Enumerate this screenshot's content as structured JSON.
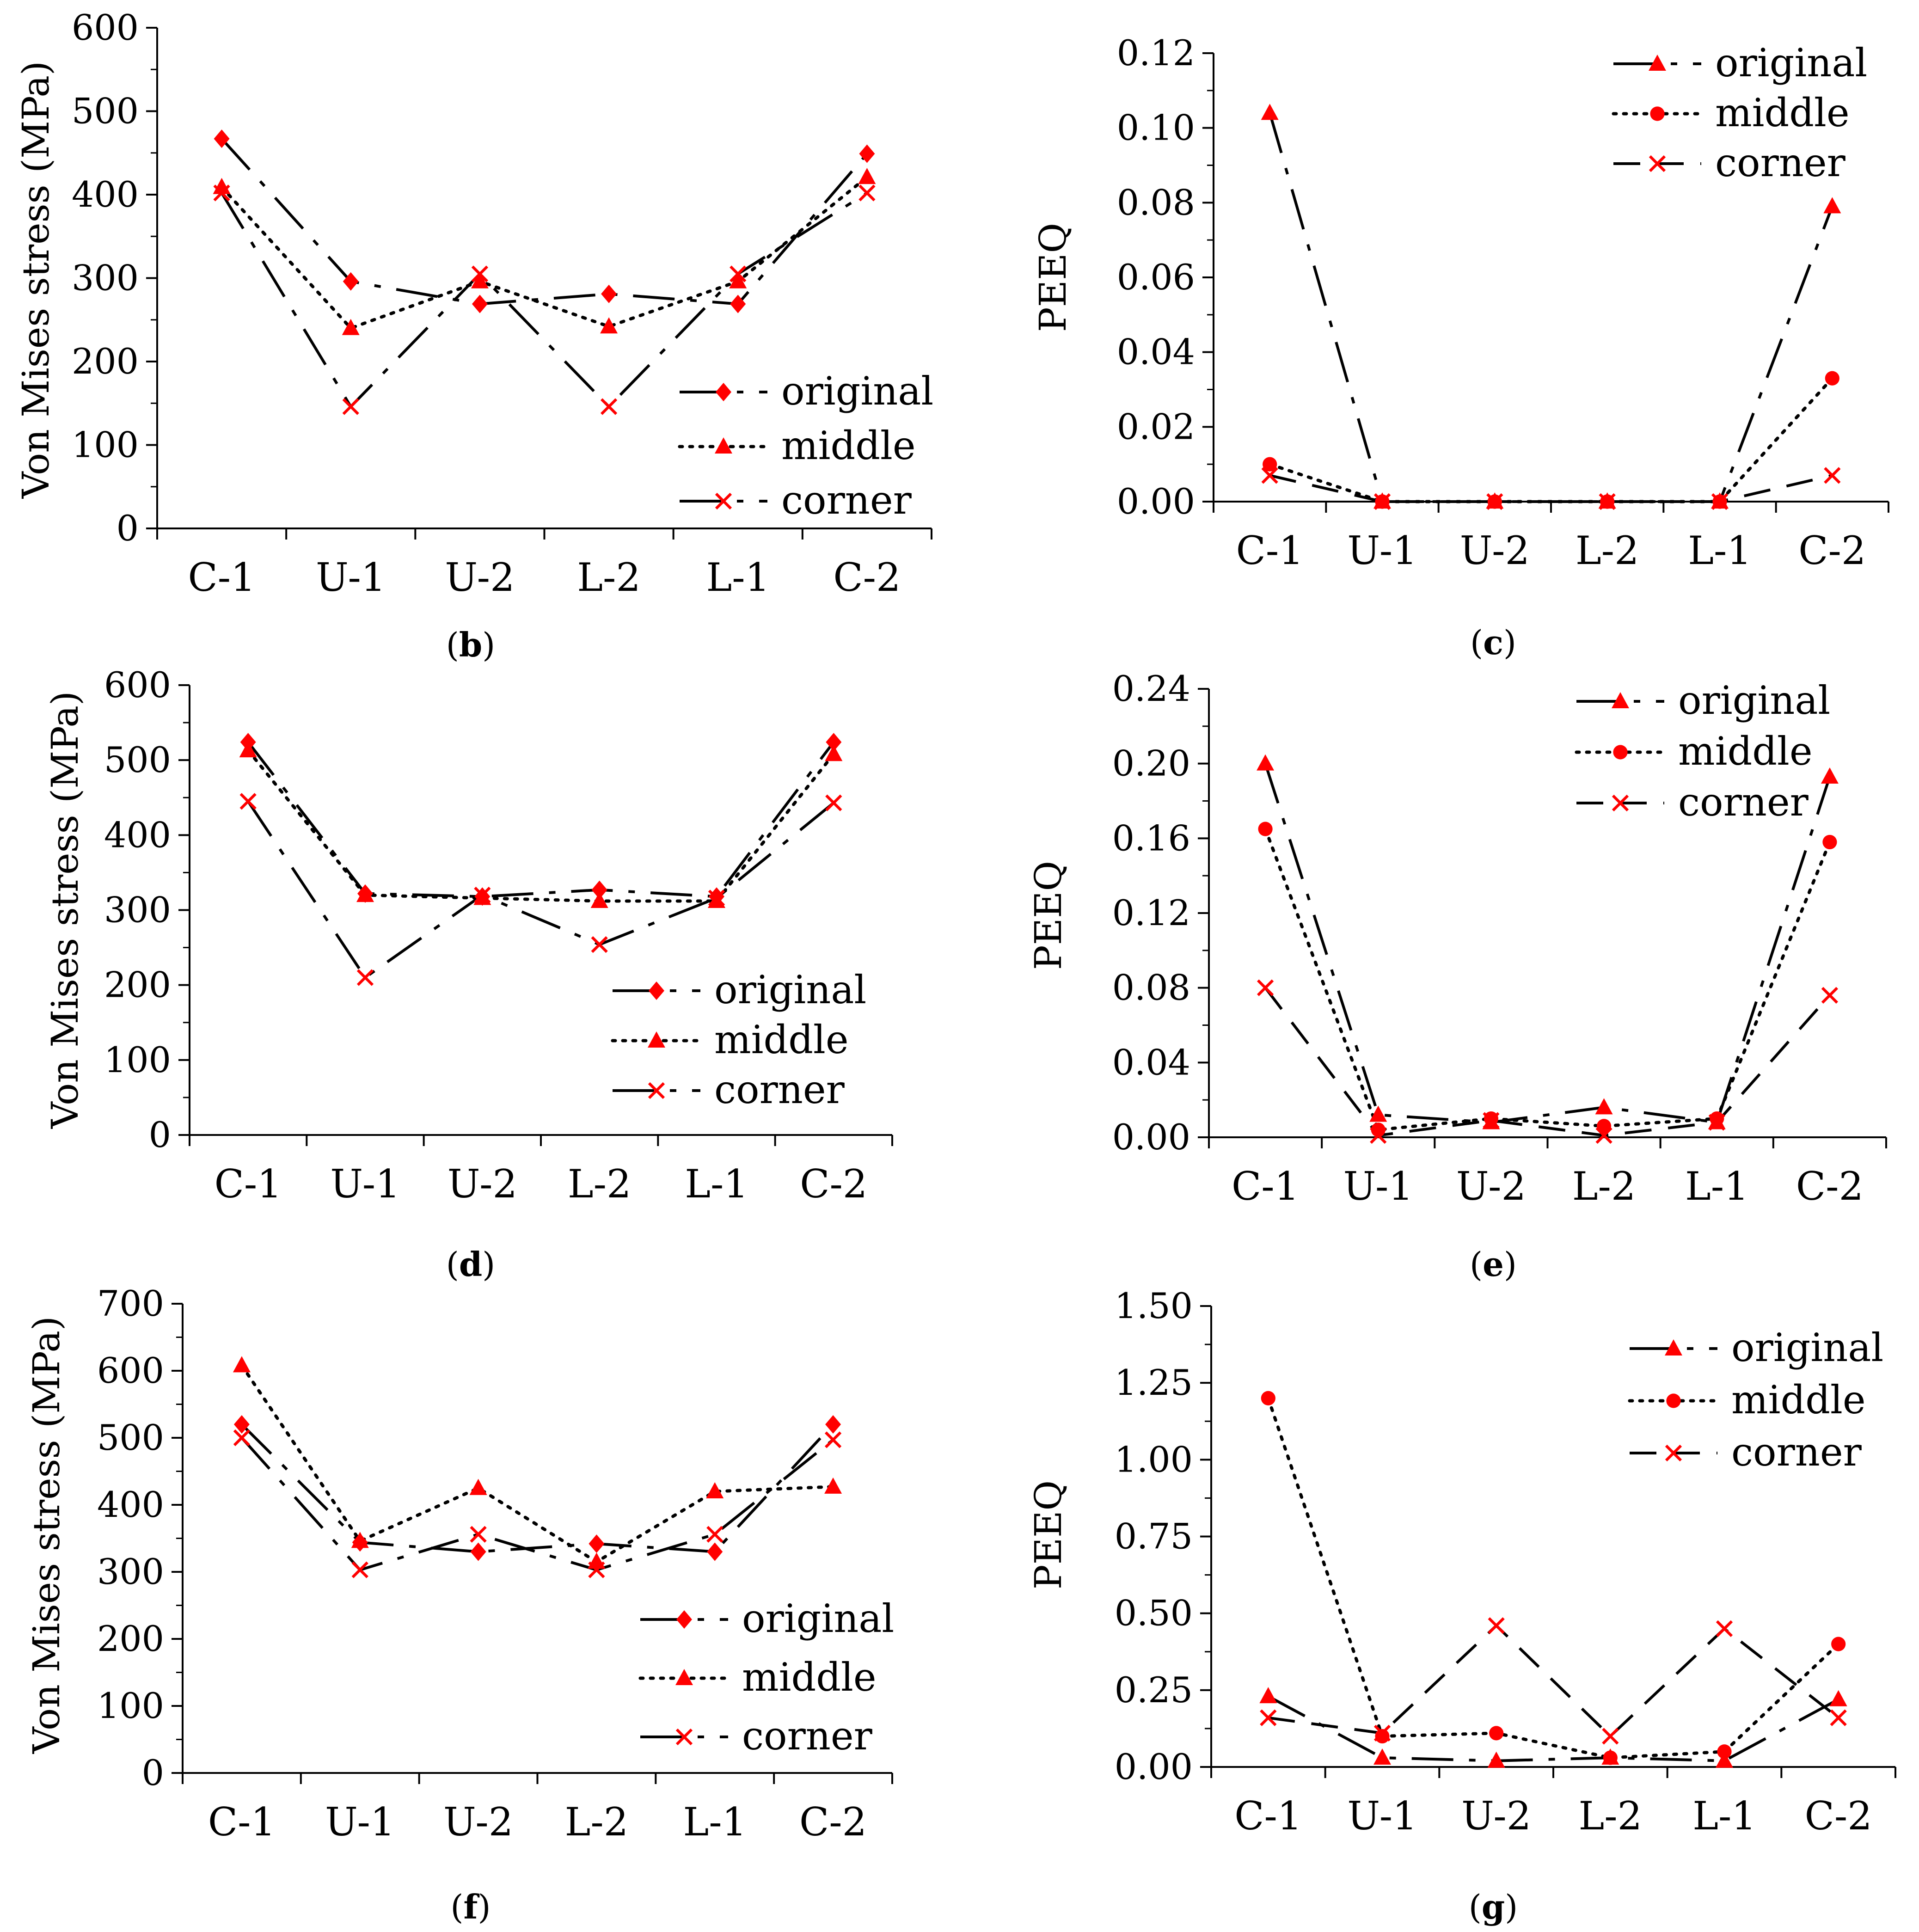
{
  "styles": {
    "marker_color": "#FF0000",
    "line_color": "#000000",
    "dash_patterns": {
      "dashdot": "90,34,14,34",
      "dotted": "6,16",
      "dashed": "58,36"
    }
  },
  "chart_data": [
    {
      "panel": "b",
      "caption_letter": "b",
      "type": "line",
      "ylabel": "Von Mises stress (MPa)",
      "ylim": [
        0,
        600
      ],
      "yticks": [
        "0",
        "100",
        "200",
        "300",
        "400",
        "500",
        "600"
      ],
      "tick_values": [
        0,
        100,
        200,
        300,
        400,
        500,
        600
      ],
      "categories": [
        "C-1",
        "U-1",
        "U-2",
        "L-2",
        "L-1",
        "C-2"
      ],
      "legend_position": "bottom-right",
      "series": [
        {
          "name": "original",
          "marker": "diamond",
          "line": "dashdot",
          "values": [
            467,
            296,
            269,
            281,
            269,
            449
          ]
        },
        {
          "name": "middle",
          "marker": "triangle",
          "line": "dotted",
          "values": [
            409,
            240,
            296,
            242,
            296,
            421
          ]
        },
        {
          "name": "corner",
          "marker": "x",
          "line": "dashdot",
          "values": [
            402,
            146,
            305,
            146,
            305,
            402
          ]
        }
      ]
    },
    {
      "panel": "c",
      "caption_letter": "c",
      "type": "line",
      "ylabel": "PEEQ",
      "ylim": [
        0,
        0.12
      ],
      "yticks": [
        "0.00",
        "0.02",
        "0.04",
        "0.06",
        "0.08",
        "0.10",
        "0.12"
      ],
      "tick_values": [
        0,
        0.02,
        0.04,
        0.06,
        0.08,
        0.1,
        0.12
      ],
      "categories": [
        "C-1",
        "U-1",
        "U-2",
        "L-2",
        "L-1",
        "C-2"
      ],
      "legend_position": "top-right",
      "series": [
        {
          "name": "original",
          "marker": "triangle",
          "line": "dashdot",
          "values": [
            0.104,
            0.0,
            0.0,
            0.0,
            0.0,
            0.079
          ]
        },
        {
          "name": "middle",
          "marker": "circle",
          "line": "dotted",
          "values": [
            0.01,
            0.0,
            0.0,
            0.0,
            0.0,
            0.033
          ]
        },
        {
          "name": "corner",
          "marker": "x",
          "line": "dashed",
          "values": [
            0.007,
            0.0,
            0.0,
            0.0,
            0.0,
            0.007
          ]
        }
      ]
    },
    {
      "panel": "d",
      "caption_letter": "d",
      "type": "line",
      "ylabel": "Von Mises stress (MPa)",
      "ylim": [
        0,
        600
      ],
      "yticks": [
        "0",
        "100",
        "200",
        "300",
        "400",
        "500",
        "600"
      ],
      "tick_values": [
        0,
        100,
        200,
        300,
        400,
        500,
        600
      ],
      "categories": [
        "C-1",
        "U-1",
        "U-2",
        "L-2",
        "L-1",
        "C-2"
      ],
      "legend_position": "bottom-right",
      "series": [
        {
          "name": "original",
          "marker": "diamond",
          "line": "dashdot",
          "values": [
            524,
            322,
            318,
            327,
            318,
            524
          ]
        },
        {
          "name": "middle",
          "marker": "triangle",
          "line": "dotted",
          "values": [
            513,
            320,
            316,
            312,
            312,
            508
          ]
        },
        {
          "name": "corner",
          "marker": "x",
          "line": "dashdot",
          "values": [
            445,
            210,
            320,
            254,
            316,
            443
          ]
        }
      ]
    },
    {
      "panel": "e",
      "caption_letter": "e",
      "type": "line",
      "ylabel": "PEEQ",
      "ylim": [
        0,
        0.24
      ],
      "yticks": [
        "0.00",
        "0.04",
        "0.08",
        "0.12",
        "0.16",
        "0.20",
        "0.24"
      ],
      "tick_values": [
        0,
        0.04,
        0.08,
        0.12,
        0.16,
        0.2,
        0.24
      ],
      "categories": [
        "C-1",
        "U-1",
        "U-2",
        "L-2",
        "L-1",
        "C-2"
      ],
      "legend_position": "top-right",
      "series": [
        {
          "name": "original",
          "marker": "triangle",
          "line": "dashdot",
          "values": [
            0.2,
            0.012,
            0.008,
            0.016,
            0.008,
            0.193
          ]
        },
        {
          "name": "middle",
          "marker": "circle",
          "line": "dotted",
          "values": [
            0.165,
            0.004,
            0.01,
            0.006,
            0.01,
            0.158
          ]
        },
        {
          "name": "corner",
          "marker": "x",
          "line": "dashed",
          "values": [
            0.08,
            0.001,
            0.009,
            0.001,
            0.008,
            0.076
          ]
        }
      ]
    },
    {
      "panel": "f",
      "caption_letter": "f",
      "type": "line",
      "ylabel": "Von Mises stress (MPa)",
      "ylim": [
        0,
        700
      ],
      "yticks": [
        "0",
        "100",
        "200",
        "300",
        "400",
        "500",
        "600",
        "700"
      ],
      "tick_values": [
        0,
        100,
        200,
        300,
        400,
        500,
        600,
        700
      ],
      "categories": [
        "C-1",
        "U-1",
        "U-2",
        "L-2",
        "L-1",
        "C-2"
      ],
      "legend_position": "bottom-right",
      "series": [
        {
          "name": "original",
          "marker": "diamond",
          "line": "dashdot",
          "values": [
            520,
            344,
            330,
            342,
            330,
            520
          ]
        },
        {
          "name": "middle",
          "marker": "triangle",
          "line": "dotted",
          "values": [
            608,
            346,
            425,
            315,
            420,
            427
          ]
        },
        {
          "name": "corner",
          "marker": "x",
          "line": "dashdot",
          "values": [
            500,
            303,
            356,
            303,
            356,
            497
          ]
        }
      ]
    },
    {
      "panel": "g",
      "caption_letter": "g",
      "type": "line",
      "ylabel": "PEEQ",
      "ylim": [
        0,
        1.5
      ],
      "yticks": [
        "0.00",
        "0.25",
        "0.50",
        "0.75",
        "1.00",
        "1.25",
        "1.50"
      ],
      "tick_values": [
        0,
        0.25,
        0.5,
        0.75,
        1.0,
        1.25,
        1.5
      ],
      "categories": [
        "C-1",
        "U-1",
        "U-2",
        "L-2",
        "L-1",
        "C-2"
      ],
      "legend_position": "top-right",
      "series": [
        {
          "name": "original",
          "marker": "triangle",
          "line": "dashdot",
          "values": [
            0.23,
            0.03,
            0.02,
            0.03,
            0.02,
            0.22
          ]
        },
        {
          "name": "middle",
          "marker": "circle",
          "line": "dotted",
          "values": [
            1.2,
            0.1,
            0.11,
            0.03,
            0.05,
            0.4
          ]
        },
        {
          "name": "corner",
          "marker": "x",
          "line": "dashed",
          "values": [
            0.16,
            0.11,
            0.46,
            0.1,
            0.45,
            0.16
          ]
        }
      ]
    }
  ]
}
